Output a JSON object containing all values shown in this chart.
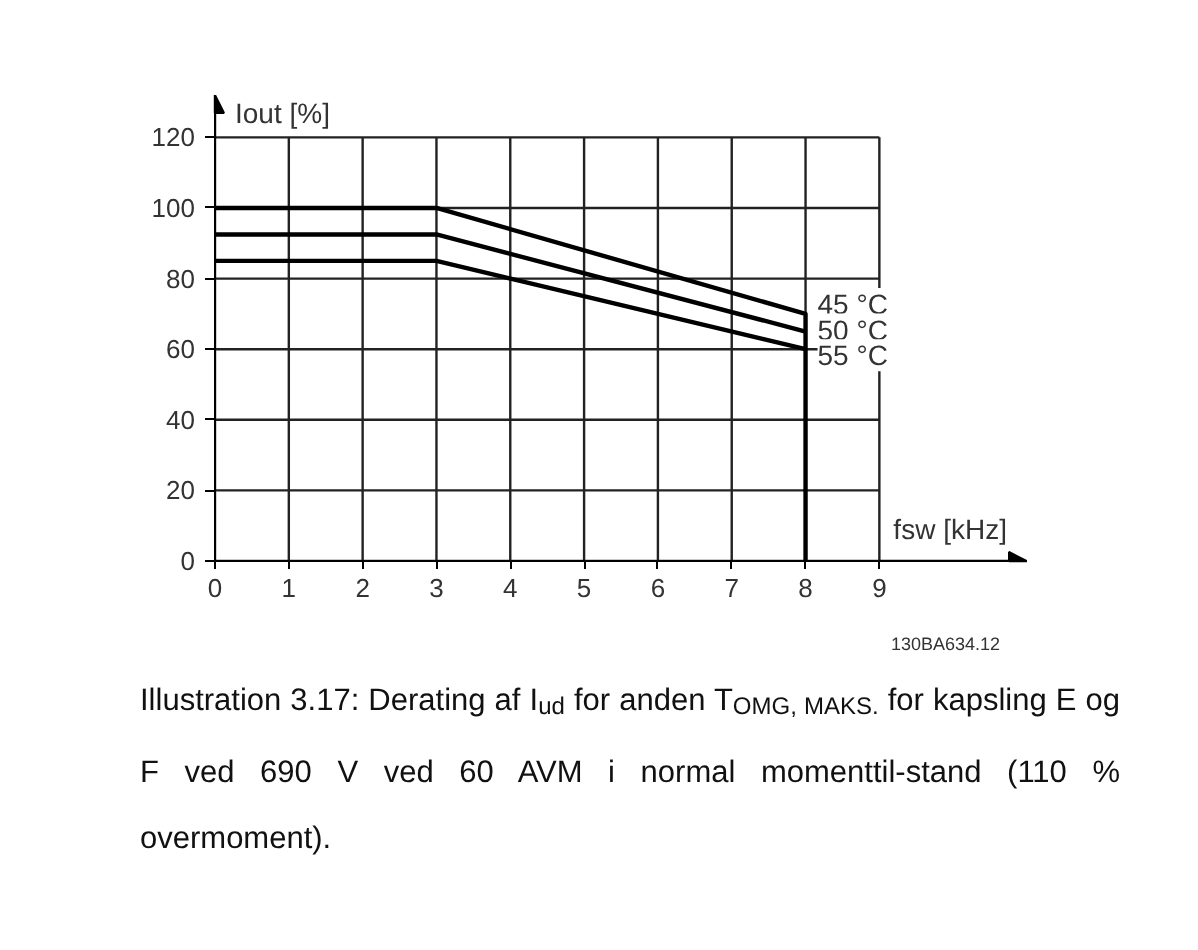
{
  "chart_data": {
    "type": "line",
    "xlabel": "fsw [kHz]",
    "ylabel": "Iout [%]",
    "series": [
      {
        "name": "45 °C",
        "color": "#000000",
        "x": [
          0,
          3,
          8,
          8
        ],
        "values": [
          100,
          100,
          70,
          0
        ]
      },
      {
        "name": "50 °C",
        "color": "#000000",
        "x": [
          0,
          3,
          8
        ],
        "values": [
          92.5,
          92.5,
          65
        ]
      },
      {
        "name": "55 °C",
        "color": "#000000",
        "x": [
          0,
          3,
          8
        ],
        "values": [
          85,
          85,
          60
        ]
      }
    ],
    "xlim": [
      0,
      11
    ],
    "ylim": [
      0,
      120
    ],
    "xticks": [
      0,
      1,
      2,
      3,
      4,
      5,
      6,
      7,
      8,
      9
    ],
    "yticks": [
      0,
      20,
      40,
      60,
      80,
      100,
      120
    ],
    "grid": true,
    "line_style": "solid",
    "marker": "none",
    "annotations": [
      "130BA634.12",
      "Illustration 3.17: Derating af I$_{ud}$ for anden T$_{OMG, MAKS.}$ for kapsling E og F ved 690 V ved 60 AVM i normal momenttil-stand (110 % overmoment)."
    ]
  }
}
